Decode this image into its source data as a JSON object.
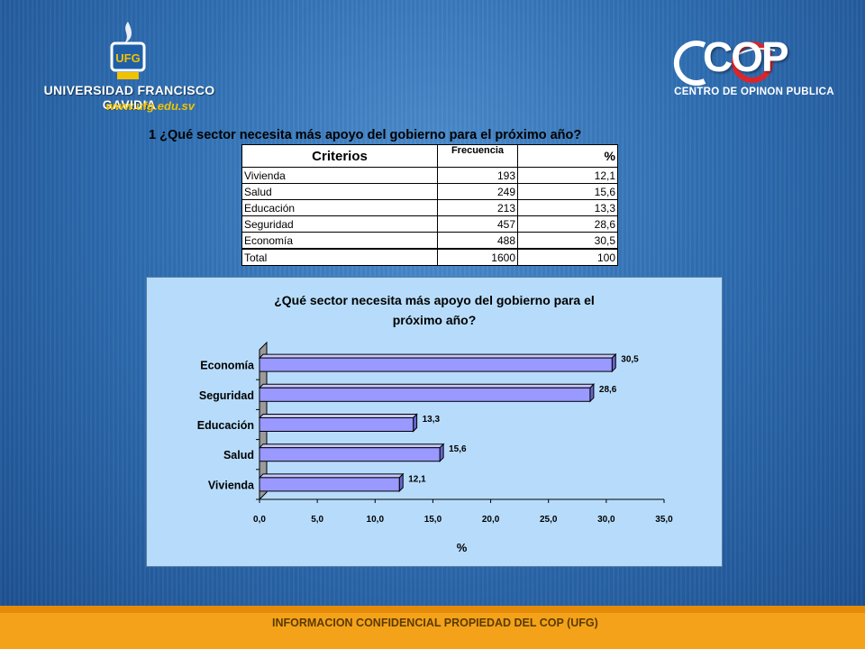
{
  "header": {
    "ufg_name": "UNIVERSIDAD FRANCISCO GAVIDIA",
    "ufg_url": "www.ufg.edu.sv",
    "ufg_emblem_text": "UFG",
    "cop_logo": "COP",
    "cop_subtitle": "CENTRO DE OPINON PUBLICA"
  },
  "question": "1 ¿Qué sector necesita más apoyo del gobierno para el próximo año?",
  "table": {
    "headers": [
      "Criterios",
      "Frecuencia",
      "%"
    ],
    "rows": [
      {
        "label": "Vivienda",
        "freq": "193",
        "pct": "12,1"
      },
      {
        "label": "Salud",
        "freq": "249",
        "pct": "15,6"
      },
      {
        "label": "Educación",
        "freq": "213",
        "pct": "13,3"
      },
      {
        "label": "Seguridad",
        "freq": "457",
        "pct": "28,6"
      },
      {
        "label": "Economía",
        "freq": "488",
        "pct": "30,5"
      },
      {
        "label": "Total",
        "freq": "1600",
        "pct": "100"
      }
    ]
  },
  "chart_data": {
    "type": "bar",
    "orientation": "horizontal",
    "title_lines": [
      "¿Qué sector necesita más apoyo del gobierno para el",
      "próximo año?"
    ],
    "categories": [
      "Vivienda",
      "Salud",
      "Educación",
      "Seguridad",
      "Economía"
    ],
    "values": [
      12.1,
      15.6,
      13.3,
      28.6,
      30.5
    ],
    "value_labels": [
      "12,1",
      "15,6",
      "13,3",
      "28,6",
      "30,5"
    ],
    "xlim": [
      0,
      35
    ],
    "x_ticks": [
      "0,0",
      "5,0",
      "10,0",
      "15,0",
      "20,0",
      "25,0",
      "30,0",
      "35,0"
    ],
    "xlabel": "%",
    "bar_color": "#9999ff",
    "background_color": "#b7dcfb",
    "grid": false,
    "legend": "none"
  },
  "footer": {
    "text": "INFORMACION CONFIDENCIAL PROPIEDAD DEL COP (UFG)"
  },
  "colors": {
    "background": "#2f6fb3",
    "footer": "#f4a21a",
    "accent_yellow": "#f2c200"
  }
}
